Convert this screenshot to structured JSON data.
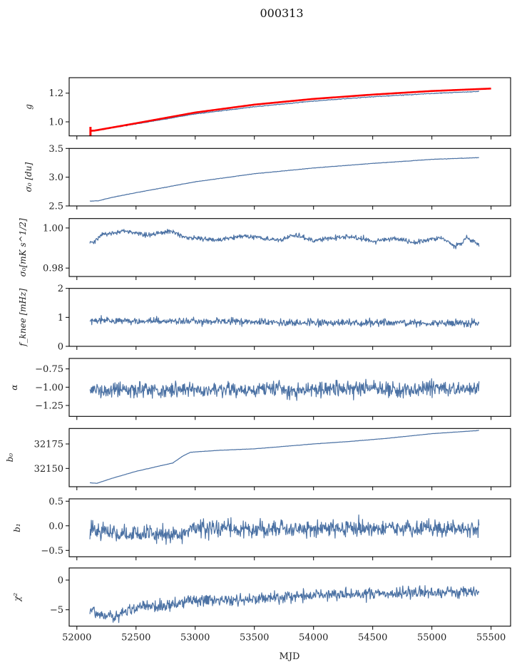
{
  "figure": {
    "title": "000313",
    "xlabel": "MJD"
  },
  "chart_data": {
    "type": "line",
    "title": "000313",
    "xlabel": "MJD",
    "xlim": [
      51935,
      55665
    ],
    "xticks": [
      52000,
      52500,
      53000,
      53500,
      54000,
      54500,
      55000,
      55500
    ],
    "xtick_labels": [
      "52000",
      "52500",
      "53000",
      "53500",
      "54000",
      "54500",
      "55000",
      "55500"
    ],
    "shared_x": true,
    "grid": false,
    "line_color": "#4c72a4",
    "panels": [
      {
        "id": "g",
        "ylabel": "g",
        "ylim": [
          0.902,
          1.308
        ],
        "yticks": [
          1.0,
          1.2
        ],
        "ytick_labels": [
          "1.0",
          "1.2"
        ],
        "series": [
          {
            "name": "g",
            "color": "#4c72a4",
            "x_range": [
              52110,
              55400
            ],
            "trend": [
              [
                52110,
                0.935
              ],
              [
                52150,
                0.937
              ],
              [
                52500,
                0.985
              ],
              [
                53000,
                1.055
              ],
              [
                53500,
                1.105
              ],
              [
                54000,
                1.145
              ],
              [
                54500,
                1.175
              ],
              [
                55000,
                1.198
              ],
              [
                55400,
                1.212
              ]
            ],
            "noise": 0.002,
            "seed": 11
          },
          {
            "name": "g_fit",
            "color": "#ff0000",
            "x_range": [
              52110,
              55500
            ],
            "trend": [
              [
                52110,
                0.937
              ],
              [
                52150,
                0.939
              ],
              [
                52500,
                0.99
              ],
              [
                53000,
                1.065
              ],
              [
                53500,
                1.12
              ],
              [
                54000,
                1.16
              ],
              [
                54500,
                1.19
              ],
              [
                55000,
                1.215
              ],
              [
                55500,
                1.232
              ]
            ],
            "noise": 0.0,
            "errorbar": {
              "x": 52115,
              "low": 0.9,
              "high": 0.965
            },
            "seed": 12
          }
        ]
      },
      {
        "id": "sigma0_du",
        "ylabel": "σ₀ [du]",
        "ylim": [
          2.5,
          3.5
        ],
        "yticks": [
          2.5,
          3.0,
          3.5
        ],
        "ytick_labels": [
          "2.5",
          "3.0",
          "3.5"
        ],
        "series": [
          {
            "name": "sigma0_du",
            "color": "#4c72a4",
            "x_range": [
              52110,
              55400
            ],
            "trend": [
              [
                52110,
                2.585
              ],
              [
                52180,
                2.59
              ],
              [
                52300,
                2.65
              ],
              [
                52500,
                2.73
              ],
              [
                53000,
                2.92
              ],
              [
                53500,
                3.06
              ],
              [
                54000,
                3.16
              ],
              [
                54500,
                3.24
              ],
              [
                55000,
                3.31
              ],
              [
                55400,
                3.34
              ]
            ],
            "noise": 0.003,
            "seed": 21
          }
        ]
      },
      {
        "id": "sigma0_mK",
        "ylabel": "σ₀[mK s^1/2]",
        "ylim": [
          0.9758,
          1.0047
        ],
        "yticks": [
          0.98,
          1.0
        ],
        "ytick_labels": [
          "0.98",
          "1.00"
        ],
        "series": [
          {
            "name": "sigma0_mK",
            "color": "#4c72a4",
            "x_range": [
              52110,
              55400
            ],
            "trend": [
              [
                52110,
                0.9935
              ],
              [
                52140,
                0.9925
              ],
              [
                52200,
                0.9965
              ],
              [
                52400,
                0.9985
              ],
              [
                52500,
                0.9975
              ],
              [
                52600,
                0.9965
              ],
              [
                52800,
                0.9985
              ],
              [
                52900,
                0.9955
              ],
              [
                53000,
                0.995
              ],
              [
                53200,
                0.994
              ],
              [
                53400,
                0.996
              ],
              [
                53500,
                0.9955
              ],
              [
                53700,
                0.994
              ],
              [
                53850,
                0.9965
              ],
              [
                54000,
                0.9935
              ],
              [
                54150,
                0.995
              ],
              [
                54350,
                0.9955
              ],
              [
                54500,
                0.9935
              ],
              [
                54700,
                0.995
              ],
              [
                54850,
                0.9925
              ],
              [
                55000,
                0.9945
              ],
              [
                55100,
                0.9945
              ],
              [
                55200,
                0.9905
              ],
              [
                55300,
                0.995
              ],
              [
                55400,
                0.9915
              ]
            ],
            "noise": 0.0009,
            "seed": 31
          }
        ]
      },
      {
        "id": "fknee",
        "ylabel": "f_knee [mHz]",
        "ylim": [
          0,
          2
        ],
        "yticks": [
          0,
          1,
          2
        ],
        "ytick_labels": [
          "0",
          "1",
          "2"
        ],
        "series": [
          {
            "name": "fknee",
            "color": "#4c72a4",
            "x_range": [
              52110,
              55400
            ],
            "trend": [
              [
                52110,
                0.88
              ],
              [
                53000,
                0.86
              ],
              [
                54000,
                0.82
              ],
              [
                55400,
                0.8
              ]
            ],
            "noise": 0.1,
            "seed": 41
          }
        ]
      },
      {
        "id": "alpha",
        "ylabel": "α",
        "ylim": [
          -1.399,
          -0.607
        ],
        "yticks": [
          -1.25,
          -1.0,
          -0.75
        ],
        "ytick_labels": [
          "−1.25",
          "−1.00",
          "−0.75"
        ],
        "series": [
          {
            "name": "alpha",
            "color": "#4c72a4",
            "x_range": [
              52110,
              55400
            ],
            "trend": [
              [
                52110,
                -1.04
              ],
              [
                55400,
                -1.02
              ]
            ],
            "noise": 0.085,
            "seed": 51
          }
        ]
      },
      {
        "id": "b0",
        "ylabel": "b₀",
        "ylim": [
          32131.3,
          32190.8
        ],
        "yticks": [
          32150,
          32175
        ],
        "ytick_labels": [
          "32150",
          "32175"
        ],
        "series": [
          {
            "name": "b0",
            "color": "#4c72a4",
            "x_range": [
              52110,
              55400
            ],
            "trend": [
              [
                52110,
                32135.3
              ],
              [
                52170,
                32134.8
              ],
              [
                52300,
                32140
              ],
              [
                52500,
                32147
              ],
              [
                52700,
                32152.5
              ],
              [
                52810,
                32155.5
              ],
              [
                52900,
                32163
              ],
              [
                52960,
                32166.5
              ],
              [
                53200,
                32168.5
              ],
              [
                53500,
                32170
              ],
              [
                53800,
                32173
              ],
              [
                54000,
                32175
              ],
              [
                54300,
                32177.5
              ],
              [
                54600,
                32180.5
              ],
              [
                55000,
                32185.5
              ],
              [
                55400,
                32188.8
              ]
            ],
            "noise": 0.12,
            "seed": 61
          }
        ]
      },
      {
        "id": "b1",
        "ylabel": "b₁",
        "ylim": [
          -0.63,
          0.548
        ],
        "yticks": [
          -0.5,
          0.0,
          0.5
        ],
        "ytick_labels": [
          "−0.5",
          "0.0",
          "0.5"
        ],
        "series": [
          {
            "name": "b1",
            "color": "#4c72a4",
            "x_range": [
              52110,
              55400
            ],
            "trend": [
              [
                52110,
                -0.1
              ],
              [
                52400,
                -0.17
              ],
              [
                52900,
                -0.15
              ],
              [
                53000,
                -0.05
              ],
              [
                54000,
                -0.06
              ],
              [
                55400,
                -0.06
              ]
            ],
            "noise": 0.13,
            "seed": 71
          }
        ]
      },
      {
        "id": "chi2",
        "ylabel": "χ²",
        "ylim": [
          -7.76,
          2.04
        ],
        "yticks": [
          -5,
          0
        ],
        "ytick_labels": [
          "−5",
          "0"
        ],
        "series": [
          {
            "name": "chi2",
            "color": "#4c72a4",
            "x_range": [
              52110,
              55400
            ],
            "trend": [
              [
                52110,
                -4.8
              ],
              [
                52200,
                -5.7
              ],
              [
                52300,
                -6.2
              ],
              [
                52500,
                -4.6
              ],
              [
                52700,
                -4.4
              ],
              [
                53000,
                -3.5
              ],
              [
                53500,
                -3.2
              ],
              [
                54000,
                -2.5
              ],
              [
                54500,
                -2.3
              ],
              [
                55000,
                -2.0
              ],
              [
                55400,
                -2.0
              ]
            ],
            "noise": 0.75,
            "seed": 81
          }
        ]
      }
    ]
  }
}
